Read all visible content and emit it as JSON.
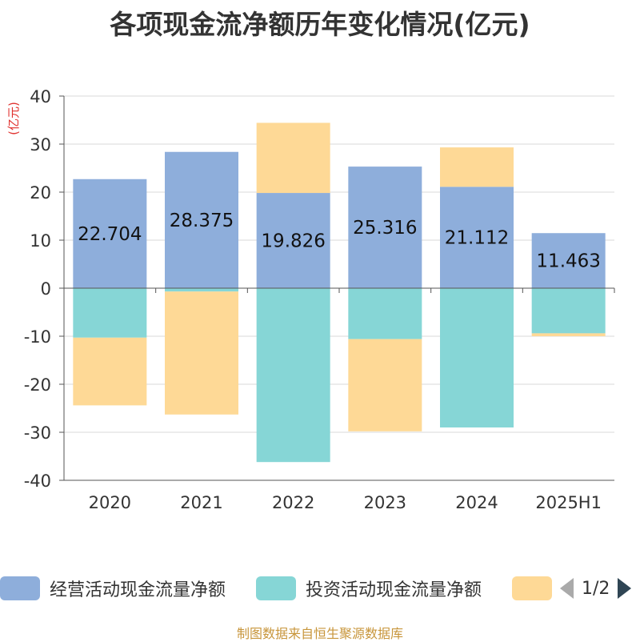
{
  "title": "各项现金流净额历年变化情况(亿元)",
  "unit_label": "(亿元)",
  "source": "制图数据来自恒生聚源数据库",
  "pager": {
    "text": "1/2"
  },
  "chart_data": {
    "type": "bar",
    "stacked": true,
    "title": "各项现金流净额历年变化情况(亿元)",
    "ylabel": "(亿元)",
    "ylim": [
      -40,
      40
    ],
    "yticks": [
      40,
      30,
      20,
      10,
      0,
      -10,
      -20,
      -30,
      -40
    ],
    "grid": true,
    "legend_position": "bottom",
    "categories": [
      "2020",
      "2021",
      "2022",
      "2023",
      "2024",
      "2025H1"
    ],
    "data_labels": [
      "22.704",
      "28.375",
      "19.826",
      "25.316",
      "21.112",
      "11.463"
    ],
    "series": [
      {
        "name": "经营活动现金流量净额",
        "color": "#8eaedb",
        "values": [
          22.704,
          28.375,
          19.826,
          25.316,
          21.112,
          11.463
        ]
      },
      {
        "name": "投资活动现金流量净额",
        "color": "#86d6d6",
        "values": [
          -10.3,
          -0.7,
          -36.2,
          -10.6,
          -29.0,
          -9.4
        ]
      },
      {
        "name": "",
        "color": "#fed996",
        "values": [
          -14.1,
          -25.6,
          14.6,
          -19.2,
          8.2,
          -0.6
        ]
      }
    ]
  }
}
